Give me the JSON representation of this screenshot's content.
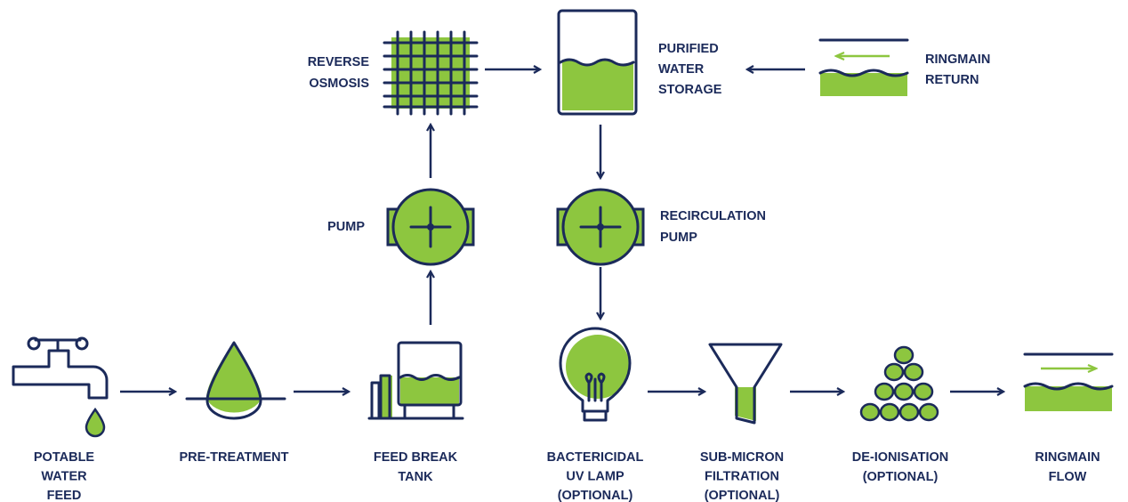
{
  "nodes": [
    {
      "label": [
        "REVERSE",
        "OSMOSIS"
      ]
    },
    {
      "label": [
        "PURIFIED",
        "WATER",
        "STORAGE"
      ]
    },
    {
      "label": [
        "RINGMAIN",
        "RETURN"
      ]
    },
    {
      "label": [
        "PUMP"
      ]
    },
    {
      "label": [
        "RECIRCULATION",
        "PUMP"
      ]
    },
    {
      "label": [
        "POTABLE",
        "WATER",
        "FEED"
      ]
    },
    {
      "label": [
        "PRE-TREATMENT"
      ]
    },
    {
      "label": [
        "FEED BREAK",
        "TANK"
      ]
    },
    {
      "label": [
        "BACTERICIDAL",
        "UV LAMP",
        "(OPTIONAL)"
      ]
    },
    {
      "label": [
        "SUB-MICRON",
        "FILTRATION",
        "(OPTIONAL)"
      ]
    },
    {
      "label": [
        "DE-IONISATION",
        "(OPTIONAL)"
      ]
    },
    {
      "label": [
        "RINGMAIN",
        "FLOW"
      ]
    }
  ]
}
